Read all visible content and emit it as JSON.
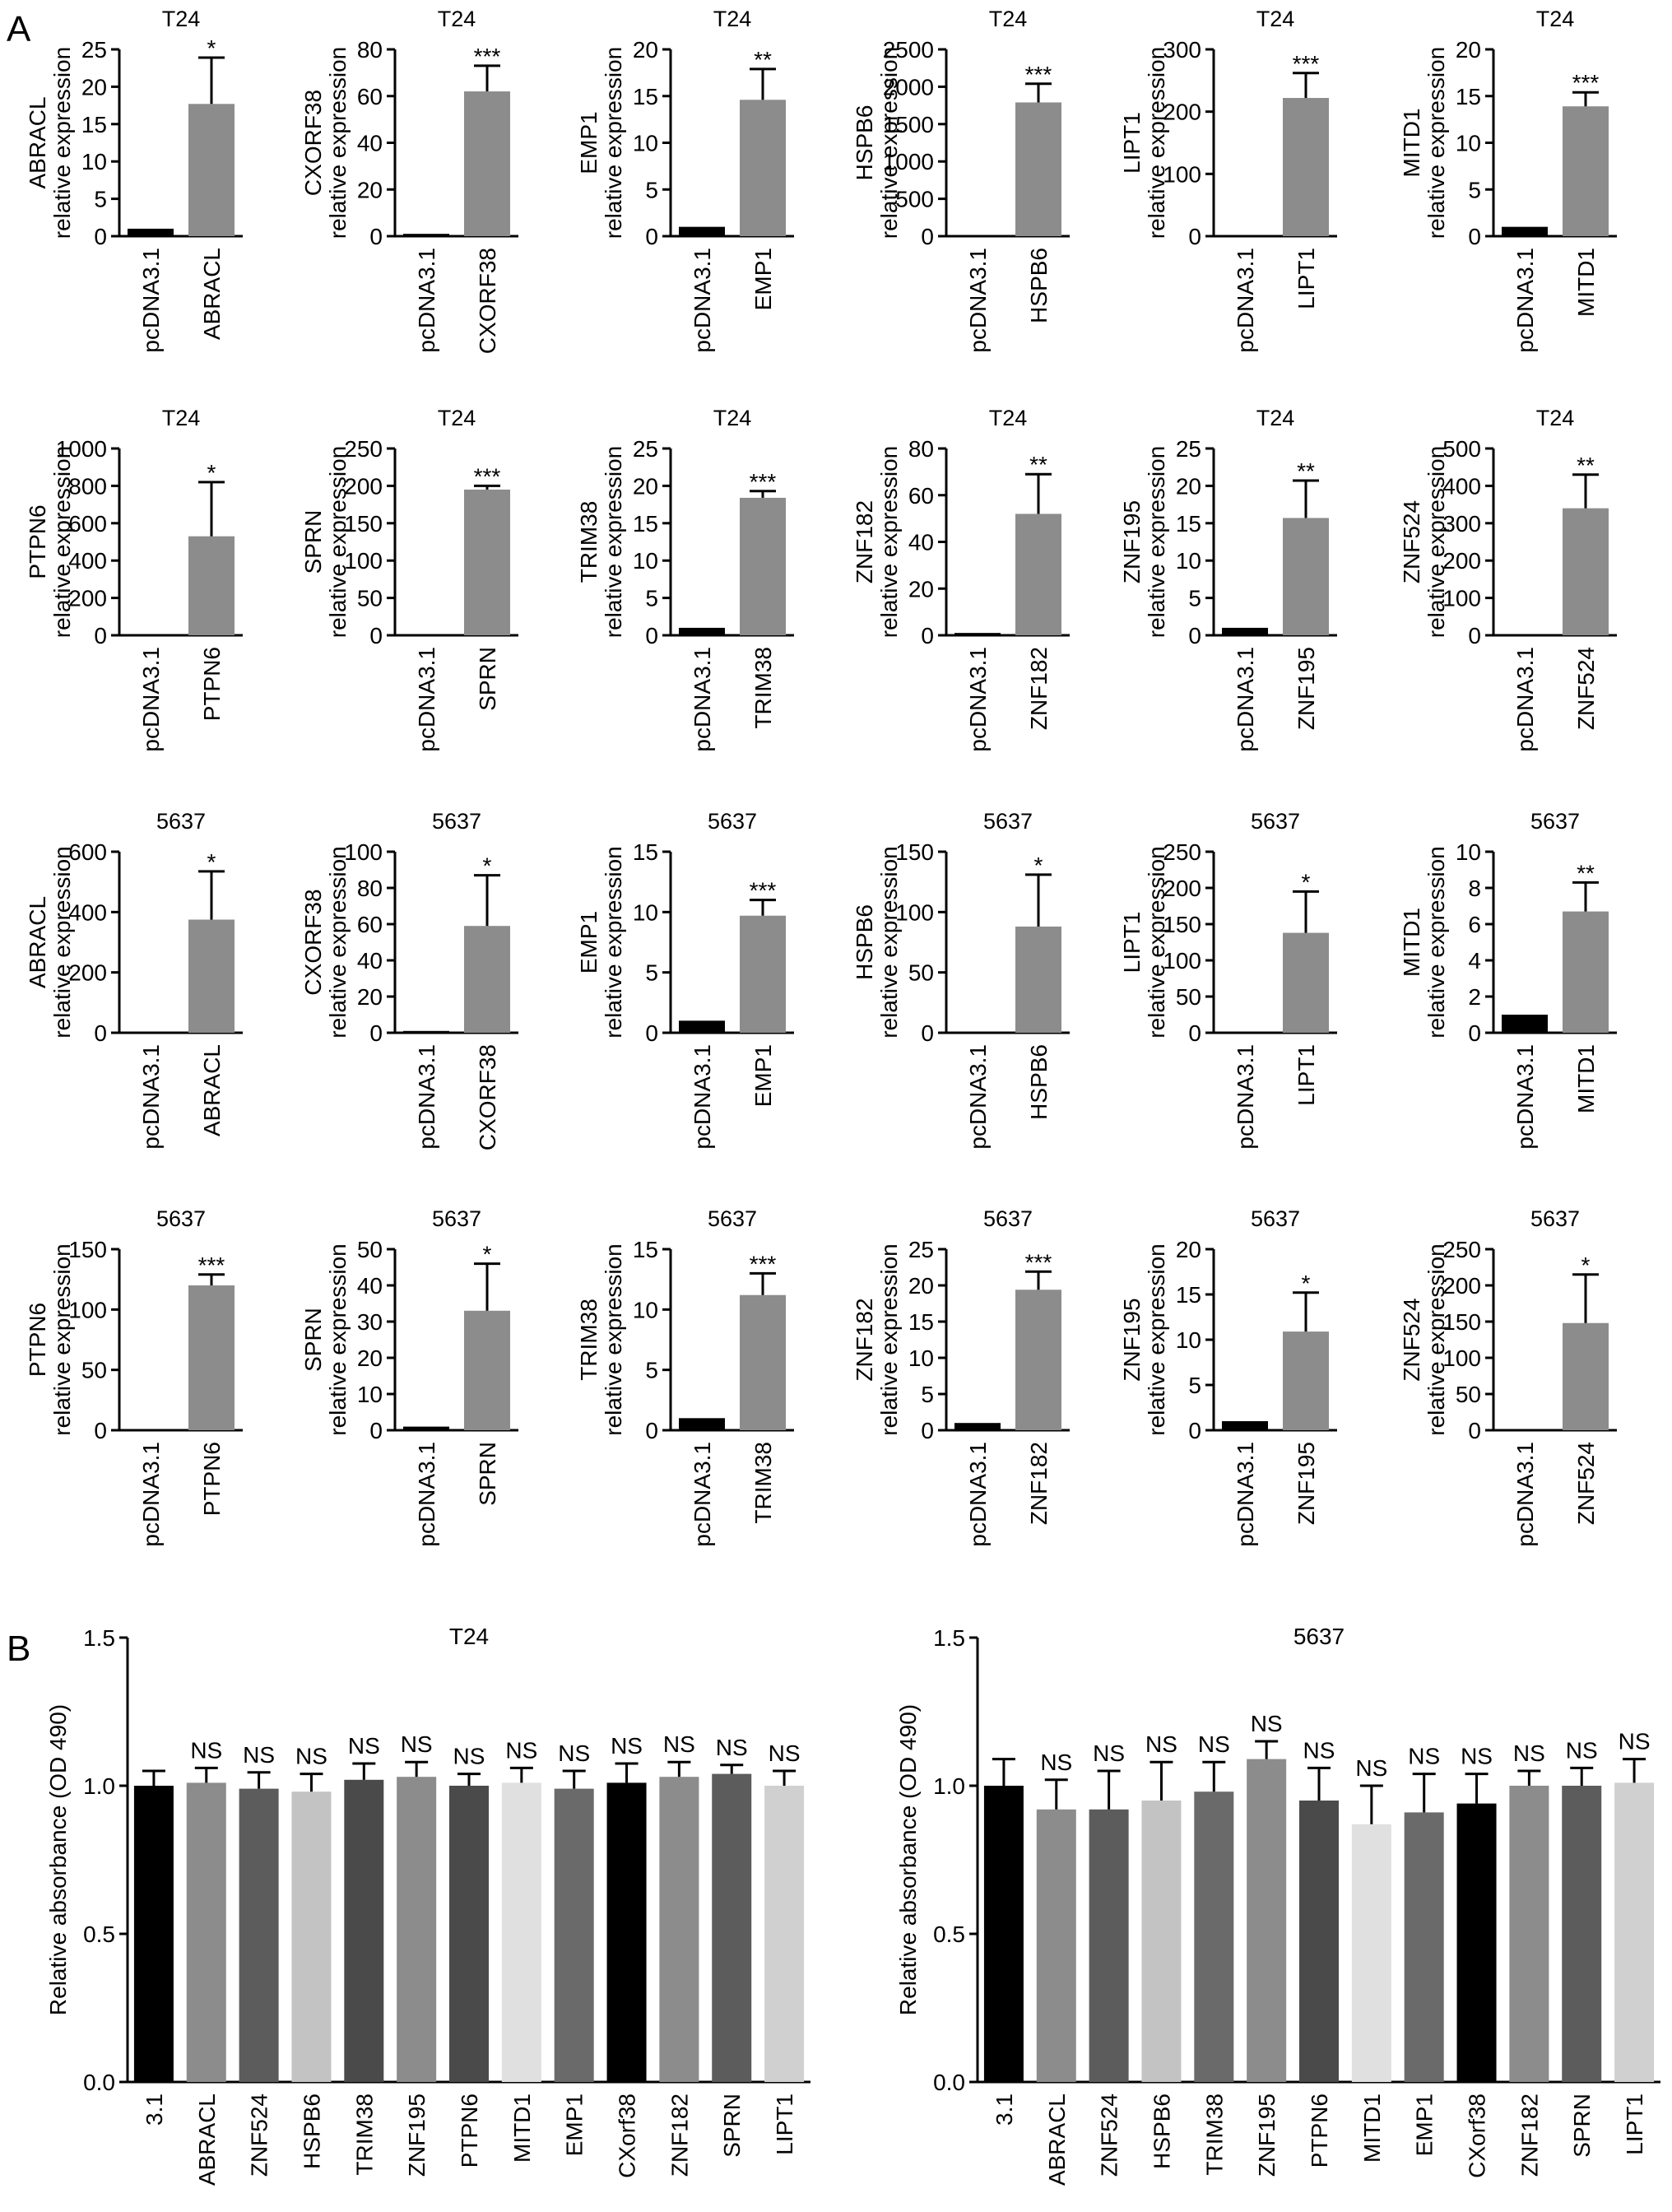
{
  "panel_labels": [
    "A",
    "B"
  ],
  "style": {
    "ctrl": "#000000",
    "over": "#8c8c8c"
  },
  "ylabel_line2": "relative expression",
  "sig": [
    "",
    "*",
    "**",
    "***"
  ],
  "chart_data": [
    {
      "type": "bar",
      "title": "T24",
      "gene": "ABRACL",
      "categories": [
        "pcDNA3.1",
        "ABRACL"
      ],
      "values": [
        1,
        17.7
      ],
      "errors": [
        0,
        6.2
      ],
      "ylim": [
        0,
        25
      ],
      "ticks": [
        0,
        5,
        10,
        15,
        20,
        25
      ],
      "significance": "*"
    },
    {
      "type": "bar",
      "title": "T24",
      "gene": "CXORF38",
      "categories": [
        "pcDNA3.1",
        "CXORF38"
      ],
      "values": [
        1,
        62
      ],
      "errors": [
        0,
        11
      ],
      "ylim": [
        0,
        80
      ],
      "ticks": [
        0,
        20,
        40,
        60,
        80
      ],
      "significance": "***"
    },
    {
      "type": "bar",
      "title": "T24",
      "gene": "EMP1",
      "categories": [
        "pcDNA3.1",
        "EMP1"
      ],
      "values": [
        1,
        14.6
      ],
      "errors": [
        0,
        3.3
      ],
      "ylim": [
        0,
        20
      ],
      "ticks": [
        0,
        5,
        10,
        15,
        20
      ],
      "significance": "**"
    },
    {
      "type": "bar",
      "title": "T24",
      "gene": "HSPB6",
      "categories": [
        "pcDNA3.1",
        "HSPB6"
      ],
      "values": [
        1,
        1790
      ],
      "errors": [
        0,
        250
      ],
      "ylim": [
        0,
        2500
      ],
      "ticks": [
        0,
        500,
        1000,
        1500,
        2000,
        2500
      ],
      "significance": "***"
    },
    {
      "type": "bar",
      "title": "T24",
      "gene": "LIPT1",
      "categories": [
        "pcDNA3.1",
        "LIPT1"
      ],
      "values": [
        1,
        222
      ],
      "errors": [
        0,
        40
      ],
      "ylim": [
        0,
        300
      ],
      "ticks": [
        0,
        100,
        200,
        300
      ],
      "significance": "***"
    },
    {
      "type": "bar",
      "title": "T24",
      "gene": "MITD1",
      "categories": [
        "pcDNA3.1",
        "MITD1"
      ],
      "values": [
        1,
        13.9
      ],
      "errors": [
        0,
        1.5
      ],
      "ylim": [
        0,
        20
      ],
      "ticks": [
        0,
        5,
        10,
        15,
        20
      ],
      "significance": "***"
    },
    {
      "type": "bar",
      "title": "T24",
      "gene": "PTPN6",
      "categories": [
        "pcDNA3.1",
        "PTPN6"
      ],
      "values": [
        1,
        530
      ],
      "errors": [
        0,
        290
      ],
      "ylim": [
        0,
        1000
      ],
      "ticks": [
        0,
        200,
        400,
        600,
        800,
        1000
      ],
      "significance": "*"
    },
    {
      "type": "bar",
      "title": "T24",
      "gene": "SPRN",
      "categories": [
        "pcDNA3.1",
        "SPRN"
      ],
      "values": [
        1,
        195
      ],
      "errors": [
        0,
        5
      ],
      "ylim": [
        0,
        250
      ],
      "ticks": [
        0,
        50,
        100,
        150,
        200,
        250
      ],
      "significance": "***"
    },
    {
      "type": "bar",
      "title": "T24",
      "gene": "TRIM38",
      "categories": [
        "pcDNA3.1",
        "TRIM38"
      ],
      "values": [
        1,
        18.4
      ],
      "errors": [
        0,
        0.9
      ],
      "ylim": [
        0,
        25
      ],
      "ticks": [
        0,
        5,
        10,
        15,
        20,
        25
      ],
      "significance": "***"
    },
    {
      "type": "bar",
      "title": "T24",
      "gene": "ZNF182",
      "categories": [
        "pcDNA3.1",
        "ZNF182"
      ],
      "values": [
        1,
        52
      ],
      "errors": [
        0,
        17
      ],
      "ylim": [
        0,
        80
      ],
      "ticks": [
        0,
        20,
        40,
        60,
        80
      ],
      "significance": "**"
    },
    {
      "type": "bar",
      "title": "T24",
      "gene": "ZNF195",
      "categories": [
        "pcDNA3.1",
        "ZNF195"
      ],
      "values": [
        1,
        15.7
      ],
      "errors": [
        0,
        5
      ],
      "ylim": [
        0,
        25
      ],
      "ticks": [
        0,
        5,
        10,
        15,
        20,
        25
      ],
      "significance": "**"
    },
    {
      "type": "bar",
      "title": "T24",
      "gene": "ZNF524",
      "categories": [
        "pcDNA3.1",
        "ZNF524"
      ],
      "values": [
        1,
        340
      ],
      "errors": [
        0,
        90
      ],
      "ylim": [
        0,
        500
      ],
      "ticks": [
        0,
        100,
        200,
        300,
        400,
        500
      ],
      "significance": "**"
    },
    {
      "type": "bar",
      "title": "5637",
      "gene": "ABRACL",
      "categories": [
        "pcDNA3.1",
        "ABRACL"
      ],
      "values": [
        1,
        375
      ],
      "errors": [
        0,
        160
      ],
      "ylim": [
        0,
        600
      ],
      "ticks": [
        0,
        200,
        400,
        600
      ],
      "significance": "*"
    },
    {
      "type": "bar",
      "title": "5637",
      "gene": "CXORF38",
      "categories": [
        "pcDNA3.1",
        "CXORF38"
      ],
      "values": [
        1,
        59
      ],
      "errors": [
        0,
        28
      ],
      "ylim": [
        0,
        100
      ],
      "ticks": [
        0,
        20,
        40,
        60,
        80,
        100
      ],
      "significance": "*"
    },
    {
      "type": "bar",
      "title": "5637",
      "gene": "EMP1",
      "categories": [
        "pcDNA3.1",
        "EMP1"
      ],
      "values": [
        1,
        9.7
      ],
      "errors": [
        0,
        1.3
      ],
      "ylim": [
        0,
        15
      ],
      "ticks": [
        0,
        5,
        10,
        15
      ],
      "significance": "***"
    },
    {
      "type": "bar",
      "title": "5637",
      "gene": "HSPB6",
      "categories": [
        "pcDNA3.1",
        "HSPB6"
      ],
      "values": [
        1,
        88
      ],
      "errors": [
        0,
        43
      ],
      "ylim": [
        0,
        150
      ],
      "ticks": [
        0,
        50,
        100,
        150
      ],
      "significance": "*"
    },
    {
      "type": "bar",
      "title": "5637",
      "gene": "LIPT1",
      "categories": [
        "pcDNA3.1",
        "LIPT1"
      ],
      "values": [
        1,
        138
      ],
      "errors": [
        0,
        57
      ],
      "ylim": [
        0,
        250
      ],
      "ticks": [
        0,
        50,
        100,
        150,
        200,
        250
      ],
      "significance": "*"
    },
    {
      "type": "bar",
      "title": "5637",
      "gene": "MITD1",
      "categories": [
        "pcDNA3.1",
        "MITD1"
      ],
      "values": [
        1,
        6.7
      ],
      "errors": [
        0,
        1.6
      ],
      "ylim": [
        0,
        10
      ],
      "ticks": [
        0,
        2,
        4,
        6,
        8,
        10
      ],
      "significance": "**"
    },
    {
      "type": "bar",
      "title": "5637",
      "gene": "PTPN6",
      "categories": [
        "pcDNA3.1",
        "PTPN6"
      ],
      "values": [
        1,
        120
      ],
      "errors": [
        0,
        9
      ],
      "ylim": [
        0,
        150
      ],
      "ticks": [
        0,
        50,
        100,
        150
      ],
      "significance": "***"
    },
    {
      "type": "bar",
      "title": "5637",
      "gene": "SPRN",
      "categories": [
        "pcDNA3.1",
        "SPRN"
      ],
      "values": [
        1,
        33
      ],
      "errors": [
        0,
        13
      ],
      "ylim": [
        0,
        50
      ],
      "ticks": [
        0,
        10,
        20,
        30,
        40,
        50
      ],
      "significance": "*"
    },
    {
      "type": "bar",
      "title": "5637",
      "gene": "TRIM38",
      "categories": [
        "pcDNA3.1",
        "TRIM38"
      ],
      "values": [
        1,
        11.2
      ],
      "errors": [
        0,
        1.8
      ],
      "ylim": [
        0,
        15
      ],
      "ticks": [
        0,
        5,
        10,
        15
      ],
      "significance": "***"
    },
    {
      "type": "bar",
      "title": "5637",
      "gene": "ZNF182",
      "categories": [
        "pcDNA3.1",
        "ZNF182"
      ],
      "values": [
        1,
        19.4
      ],
      "errors": [
        0,
        2.5
      ],
      "ylim": [
        0,
        25
      ],
      "ticks": [
        0,
        5,
        10,
        15,
        20,
        25
      ],
      "significance": "***"
    },
    {
      "type": "bar",
      "title": "5637",
      "gene": "ZNF195",
      "categories": [
        "pcDNA3.1",
        "ZNF195"
      ],
      "values": [
        1,
        10.9
      ],
      "errors": [
        0,
        4.3
      ],
      "ylim": [
        0,
        20
      ],
      "ticks": [
        0,
        5,
        10,
        15,
        20
      ],
      "significance": "*"
    },
    {
      "type": "bar",
      "title": "5637",
      "gene": "ZNF524",
      "categories": [
        "pcDNA3.1",
        "ZNF524"
      ],
      "values": [
        1,
        148
      ],
      "errors": [
        0,
        67
      ],
      "ylim": [
        0,
        250
      ],
      "ticks": [
        0,
        50,
        100,
        150,
        200,
        250
      ],
      "significance": "*"
    },
    {
      "type": "bar",
      "title": "T24",
      "ylabel": "Relative absorbance (OD 490)",
      "ylim": [
        0,
        1.5
      ],
      "ticks": [
        "0.0",
        "0.5",
        "1.0",
        "1.5"
      ],
      "categories": [
        "3.1",
        "ABRACL",
        "ZNF524",
        "HSPB6",
        "TRIM38",
        "ZNF195",
        "PTPN6",
        "MITD1",
        "EMP1",
        "CXorf38",
        "ZNF182",
        "SPRN",
        "LIPT1"
      ],
      "values": [
        1.0,
        1.01,
        0.99,
        0.98,
        1.02,
        1.03,
        1.0,
        1.01,
        0.99,
        1.01,
        1.03,
        1.04,
        1.0
      ],
      "errors": [
        0.05,
        0.05,
        0.055,
        0.06,
        0.055,
        0.05,
        0.04,
        0.05,
        0.06,
        0.065,
        0.05,
        0.03,
        0.05
      ],
      "colors": [
        "#000000",
        "#8c8c8c",
        "#5c5c5c",
        "#c3c3c3",
        "#4a4a4a",
        "#8c8c8c",
        "#4a4a4a",
        "#e0e0e0",
        "#6a6a6a",
        "#000000",
        "#8c8c8c",
        "#5c5c5c",
        "#d0d0d0"
      ],
      "annotations": [
        "",
        "NS",
        "NS",
        "NS",
        "NS",
        "NS",
        "NS",
        "NS",
        "NS",
        "NS",
        "NS",
        "NS",
        "NS"
      ]
    },
    {
      "type": "bar",
      "title": "5637",
      "ylabel": "Relative absorbance (OD 490)",
      "ylim": [
        0,
        1.5
      ],
      "ticks": [
        "0.0",
        "0.5",
        "1.0",
        "1.5"
      ],
      "categories": [
        "3.1",
        "ABRACL",
        "ZNF524",
        "HSPB6",
        "TRIM38",
        "ZNF195",
        "PTPN6",
        "MITD1",
        "EMP1",
        "CXorf38",
        "ZNF182",
        "SPRN",
        "LIPT1"
      ],
      "values": [
        1.0,
        0.92,
        0.92,
        0.95,
        0.98,
        1.09,
        0.95,
        0.87,
        0.91,
        0.94,
        1.0,
        1.0,
        1.01
      ],
      "errors": [
        0.09,
        0.1,
        0.13,
        0.13,
        0.1,
        0.06,
        0.11,
        0.13,
        0.13,
        0.1,
        0.05,
        0.06,
        0.08
      ],
      "colors": [
        "#000000",
        "#8c8c8c",
        "#5c5c5c",
        "#c3c3c3",
        "#6a6a6a",
        "#8c8c8c",
        "#4a4a4a",
        "#e0e0e0",
        "#6a6a6a",
        "#000000",
        "#8c8c8c",
        "#5c5c5c",
        "#d0d0d0"
      ],
      "annotations": [
        "",
        "NS",
        "NS",
        "NS",
        "NS",
        "NS",
        "NS",
        "NS",
        "NS",
        "NS",
        "NS",
        "NS",
        "NS"
      ]
    }
  ]
}
